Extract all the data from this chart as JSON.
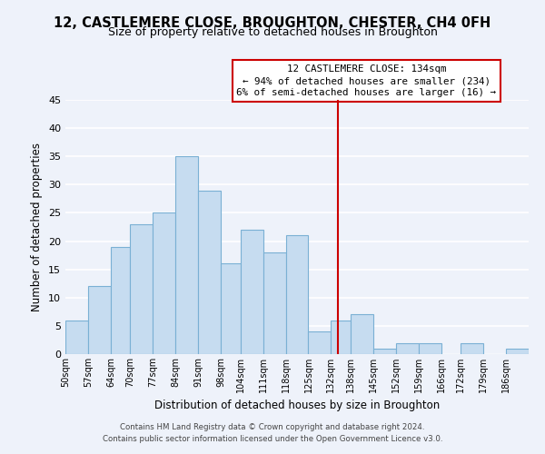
{
  "title": "12, CASTLEMERE CLOSE, BROUGHTON, CHESTER, CH4 0FH",
  "subtitle": "Size of property relative to detached houses in Broughton",
  "xlabel": "Distribution of detached houses by size in Broughton",
  "ylabel": "Number of detached properties",
  "bin_labels": [
    "50sqm",
    "57sqm",
    "64sqm",
    "70sqm",
    "77sqm",
    "84sqm",
    "91sqm",
    "98sqm",
    "104sqm",
    "111sqm",
    "118sqm",
    "125sqm",
    "132sqm",
    "138sqm",
    "145sqm",
    "152sqm",
    "159sqm",
    "166sqm",
    "172sqm",
    "179sqm",
    "186sqm"
  ],
  "bin_edges": [
    50,
    57,
    64,
    70,
    77,
    84,
    91,
    98,
    104,
    111,
    118,
    125,
    132,
    138,
    145,
    152,
    159,
    166,
    172,
    179,
    186,
    193
  ],
  "counts": [
    6,
    12,
    19,
    23,
    25,
    35,
    29,
    16,
    22,
    18,
    21,
    4,
    6,
    7,
    1,
    2,
    2,
    0,
    2,
    0,
    1
  ],
  "bar_color": "#c6dcf0",
  "bar_edge_color": "#7ab0d4",
  "property_line_x": 134,
  "property_line_color": "#cc0000",
  "ylim": [
    0,
    45
  ],
  "yticks": [
    0,
    5,
    10,
    15,
    20,
    25,
    30,
    35,
    40,
    45
  ],
  "annotation_title": "12 CASTLEMERE CLOSE: 134sqm",
  "annotation_line1": "← 94% of detached houses are smaller (234)",
  "annotation_line2": "6% of semi-detached houses are larger (16) →",
  "footnote1": "Contains HM Land Registry data © Crown copyright and database right 2024.",
  "footnote2": "Contains public sector information licensed under the Open Government Licence v3.0.",
  "bg_color": "#eef2fa",
  "grid_color": "#ffffff",
  "title_fontsize": 10.5,
  "subtitle_fontsize": 9,
  "xlabel_fontsize": 8.5,
  "ylabel_fontsize": 8.5
}
